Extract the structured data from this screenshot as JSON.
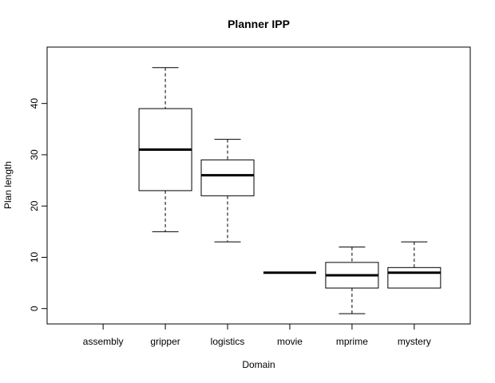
{
  "chart_data": {
    "type": "boxplot",
    "title": "Planner IPP",
    "xlabel": "Domain",
    "ylabel": "Plan length",
    "ylim": [
      -3,
      51
    ],
    "yticks": [
      0,
      10,
      20,
      30,
      40
    ],
    "categories": [
      "assembly",
      "gripper",
      "logistics",
      "movie",
      "mprime",
      "mystery"
    ],
    "boxes": [
      null,
      {
        "min": 15,
        "q1": 23,
        "median": 31,
        "q3": 39,
        "max": 47
      },
      {
        "min": 13,
        "q1": 22,
        "median": 26,
        "q3": 29,
        "max": 33
      },
      {
        "min": 7,
        "q1": 7,
        "median": 7,
        "q3": 7,
        "max": 7
      },
      {
        "min": -1,
        "q1": 4,
        "median": 6.5,
        "q3": 9,
        "max": 12
      },
      {
        "min": 4,
        "q1": 4,
        "median": 7,
        "q3": 8,
        "max": 13
      }
    ],
    "grid": false,
    "legend": "none"
  }
}
